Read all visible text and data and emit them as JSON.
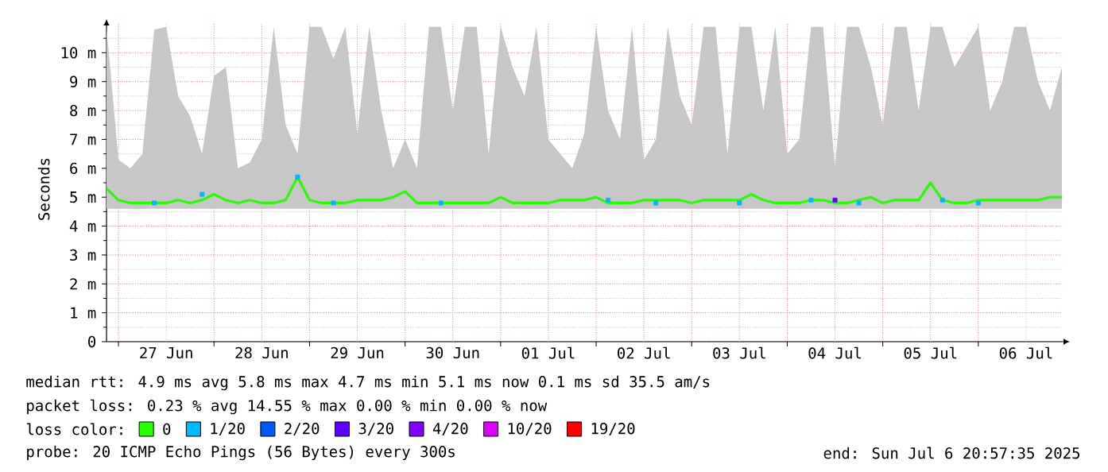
{
  "chart_data": {
    "type": "line",
    "ylabel": "Seconds",
    "legend_title": "loss color:",
    "legend": "bottom",
    "grid": true,
    "xlim": [
      "2025-06-26T21:00",
      "2025-07-06T21:00"
    ],
    "ylim": [
      0,
      11
    ],
    "xticks": [
      {
        "value": "2025-06-27T00:00",
        "label": null
      },
      {
        "value": "2025-06-28T00:00",
        "label": null
      },
      {
        "value": "2025-06-29T00:00",
        "label": null
      },
      {
        "value": "2025-06-30T00:00",
        "label": null
      },
      {
        "value": "2025-07-01T00:00",
        "label": null
      },
      {
        "value": "2025-07-02T00:00",
        "label": null
      },
      {
        "value": "2025-07-03T00:00",
        "label": null
      },
      {
        "value": "2025-07-04T00:00",
        "label": null
      },
      {
        "value": "2025-07-05T00:00",
        "label": null
      },
      {
        "value": "2025-07-06T00:00",
        "label": null
      },
      {
        "value": "2025-06-27T12:00",
        "label": "27 Jun"
      },
      {
        "value": "2025-06-28T12:00",
        "label": "28 Jun"
      },
      {
        "value": "2025-06-29T12:00",
        "label": "29 Jun"
      },
      {
        "value": "2025-06-30T12:00",
        "label": "30 Jun"
      },
      {
        "value": "2025-07-01T12:00",
        "label": "01 Jul"
      },
      {
        "value": "2025-07-02T12:00",
        "label": "02 Jul"
      },
      {
        "value": "2025-07-03T12:00",
        "label": "03 Jul"
      },
      {
        "value": "2025-07-04T12:00",
        "label": "04 Jul"
      },
      {
        "value": "2025-07-05T12:00",
        "label": "05 Jul"
      },
      {
        "value": "2025-07-06T12:00",
        "label": "06 Jul"
      }
    ],
    "yticks": [
      0,
      {
        "value": 1,
        "label": "1 m"
      },
      {
        "value": 2,
        "label": "2 m"
      },
      {
        "value": 3,
        "label": "3 m"
      },
      {
        "value": 4,
        "label": "4 m"
      },
      {
        "value": 5,
        "label": "5 m"
      },
      {
        "value": 6,
        "label": "6 m"
      },
      {
        "value": 7,
        "label": "7 m"
      },
      {
        "value": 8,
        "label": "8 m"
      },
      {
        "value": 9,
        "label": "9 m"
      },
      {
        "value": 10,
        "label": "10 m"
      },
      {
        "value": 0.5,
        "label": null
      },
      {
        "value": 1.5,
        "label": null
      },
      {
        "value": 2.5,
        "label": null
      },
      {
        "value": 3.5,
        "label": null
      },
      {
        "value": 4.5,
        "label": null
      },
      {
        "value": 5.5,
        "label": null
      },
      {
        "value": 6.5,
        "label": null
      },
      {
        "value": 7.5,
        "label": null
      },
      {
        "value": 8.5,
        "label": null
      },
      {
        "value": 9.5,
        "label": null
      },
      {
        "value": 10.5,
        "label": null
      }
    ],
    "x": [
      "2025-06-26T21:00",
      "2025-06-27T00:00",
      "2025-06-27T03:00",
      "2025-06-27T06:00",
      "2025-06-27T09:00",
      "2025-06-27T12:00",
      "2025-06-27T15:00",
      "2025-06-27T18:00",
      "2025-06-27T21:00",
      "2025-06-28T00:00",
      "2025-06-28T03:00",
      "2025-06-28T06:00",
      "2025-06-28T09:00",
      "2025-06-28T12:00",
      "2025-06-28T15:00",
      "2025-06-28T18:00",
      "2025-06-28T21:00",
      "2025-06-29T00:00",
      "2025-06-29T03:00",
      "2025-06-29T06:00",
      "2025-06-29T09:00",
      "2025-06-29T12:00",
      "2025-06-29T15:00",
      "2025-06-29T18:00",
      "2025-06-29T21:00",
      "2025-06-30T00:00",
      "2025-06-30T03:00",
      "2025-06-30T06:00",
      "2025-06-30T09:00",
      "2025-06-30T12:00",
      "2025-06-30T15:00",
      "2025-06-30T18:00",
      "2025-06-30T21:00",
      "2025-07-01T00:00",
      "2025-07-01T03:00",
      "2025-07-01T06:00",
      "2025-07-01T09:00",
      "2025-07-01T12:00",
      "2025-07-01T15:00",
      "2025-07-01T18:00",
      "2025-07-01T21:00",
      "2025-07-02T00:00",
      "2025-07-02T03:00",
      "2025-07-02T06:00",
      "2025-07-02T09:00",
      "2025-07-02T12:00",
      "2025-07-02T15:00",
      "2025-07-02T18:00",
      "2025-07-02T21:00",
      "2025-07-03T00:00",
      "2025-07-03T03:00",
      "2025-07-03T06:00",
      "2025-07-03T09:00",
      "2025-07-03T12:00",
      "2025-07-03T15:00",
      "2025-07-03T18:00",
      "2025-07-03T21:00",
      "2025-07-04T00:00",
      "2025-07-04T03:00",
      "2025-07-04T06:00",
      "2025-07-04T09:00",
      "2025-07-04T12:00",
      "2025-07-04T15:00",
      "2025-07-04T18:00",
      "2025-07-04T21:00",
      "2025-07-05T00:00",
      "2025-07-05T03:00",
      "2025-07-05T06:00",
      "2025-07-05T09:00",
      "2025-07-05T12:00",
      "2025-07-05T15:00",
      "2025-07-05T18:00",
      "2025-07-05T21:00",
      "2025-07-06T00:00",
      "2025-07-06T03:00",
      "2025-07-06T06:00",
      "2025-07-06T09:00",
      "2025-07-06T12:00",
      "2025-07-06T15:00",
      "2025-07-06T18:00",
      "2025-07-06T21:00"
    ],
    "series": [
      {
        "name": "0",
        "color": "#26ff00",
        "values": [
          5.3,
          4.9,
          4.8,
          4.8,
          4.8,
          4.8,
          4.9,
          4.8,
          4.9,
          5.1,
          4.9,
          4.8,
          4.9,
          4.8,
          4.8,
          4.9,
          5.7,
          4.9,
          4.8,
          4.8,
          4.8,
          4.9,
          4.9,
          4.9,
          5.0,
          5.2,
          4.8,
          4.8,
          4.8,
          4.8,
          4.8,
          4.8,
          4.8,
          5.0,
          4.8,
          4.8,
          4.8,
          4.8,
          4.9,
          4.9,
          4.9,
          5.0,
          4.8,
          4.8,
          4.8,
          4.9,
          4.9,
          4.9,
          4.9,
          4.8,
          4.9,
          4.9,
          4.9,
          4.9,
          5.1,
          4.9,
          4.8,
          4.8,
          4.8,
          4.9,
          4.9,
          4.8,
          4.8,
          4.9,
          5.0,
          4.8,
          4.9,
          4.9,
          4.9,
          5.5,
          4.9,
          4.8,
          4.8,
          4.9,
          4.9,
          4.9,
          4.9,
          4.9,
          4.9,
          5.0,
          5.0
        ],
        "lower": [
          4.6,
          4.6,
          4.6,
          4.6,
          4.6,
          4.6,
          4.6,
          4.6,
          4.6,
          4.6,
          4.6,
          4.6,
          4.6,
          4.6,
          4.6,
          4.6,
          4.6,
          4.6,
          4.6,
          4.6,
          4.6,
          4.6,
          4.6,
          4.6,
          4.6,
          4.6,
          4.6,
          4.6,
          4.6,
          4.6,
          4.6,
          4.6,
          4.6,
          4.6,
          4.6,
          4.6,
          4.6,
          4.6,
          4.6,
          4.6,
          4.6,
          4.6,
          4.6,
          4.6,
          4.6,
          4.6,
          4.6,
          4.6,
          4.6,
          4.6,
          4.6,
          4.6,
          4.6,
          4.6,
          4.6,
          4.6,
          4.6,
          4.6,
          4.6,
          4.6,
          4.6,
          4.6,
          4.6,
          4.6,
          4.6,
          4.6,
          4.6,
          4.6,
          4.6,
          4.6,
          4.6,
          4.6,
          4.6,
          4.6,
          4.6,
          4.6,
          4.6,
          4.6,
          4.6,
          4.6,
          4.6
        ],
        "upper": [
          10.9,
          6.3,
          6.0,
          6.5,
          10.8,
          10.9,
          8.5,
          7.8,
          6.5,
          9.2,
          9.5,
          6.0,
          6.2,
          7.0,
          10.9,
          7.5,
          6.5,
          10.9,
          10.9,
          9.8,
          10.9,
          7.2,
          10.9,
          8.0,
          6.0,
          7.0,
          6.0,
          10.9,
          10.9,
          8.0,
          10.9,
          10.9,
          6.5,
          10.9,
          9.5,
          8.5,
          10.9,
          7.0,
          6.5,
          6.0,
          7.2,
          10.9,
          8.0,
          7.0,
          10.9,
          6.3,
          7.0,
          10.9,
          8.5,
          7.5,
          10.9,
          10.9,
          6.5,
          10.9,
          10.9,
          8.0,
          10.9,
          6.5,
          7.0,
          10.9,
          10.9,
          6.0,
          10.9,
          10.9,
          9.5,
          7.5,
          10.9,
          10.9,
          8.0,
          10.9,
          10.9,
          9.5,
          10.2,
          10.9,
          8.0,
          9.0,
          10.9,
          10.9,
          9.0,
          8.0,
          9.5
        ]
      },
      {
        "name": "1/20",
        "type": "scatter",
        "color": "#00b8ff",
        "x": [
          "2025-06-27T09:00",
          "2025-06-27T21:00",
          "2025-06-28T21:00",
          "2025-06-29T06:00",
          "2025-06-30T09:00",
          "2025-07-02T03:00",
          "2025-07-02T15:00",
          "2025-07-03T12:00",
          "2025-07-04T06:00",
          "2025-07-04T18:00",
          "2025-07-05T15:00",
          "2025-07-06T00:00"
        ],
        "values": [
          4.8,
          5.1,
          5.7,
          4.8,
          4.8,
          4.9,
          4.8,
          4.8,
          4.9,
          4.8,
          4.9,
          4.8
        ]
      },
      {
        "name": "2/20",
        "type": "scatter",
        "color": "#0059ff",
        "values": [
          null,
          null,
          null,
          null,
          null,
          null,
          null,
          null,
          null,
          null,
          null,
          null,
          null,
          null,
          null,
          null,
          null,
          null,
          null,
          null,
          null,
          null,
          null,
          null,
          null,
          null,
          null,
          null,
          null,
          null,
          null,
          null,
          null,
          null,
          null,
          null,
          null,
          null,
          null,
          null,
          null,
          null,
          null,
          null,
          null,
          null,
          null,
          null,
          null,
          null,
          null,
          null,
          null,
          null,
          null,
          null,
          null,
          null,
          null,
          null,
          null,
          null,
          null,
          null,
          null,
          null,
          null,
          null,
          null,
          null,
          null,
          null,
          null,
          null,
          null,
          null,
          null,
          null,
          null,
          null,
          null
        ]
      },
      {
        "name": "3/20",
        "type": "scatter",
        "color": "#5e00ff",
        "x": [
          "2025-07-04T12:00"
        ],
        "values": [
          4.9
        ]
      },
      {
        "name": "4/20",
        "type": "scatter",
        "color": "#7e00ff",
        "values": [
          null,
          null,
          null,
          null,
          null,
          null,
          null,
          null,
          null,
          null,
          null,
          null,
          null,
          null,
          null,
          null,
          null,
          null,
          null,
          null,
          null,
          null,
          null,
          null,
          null,
          null,
          null,
          null,
          null,
          null,
          null,
          null,
          null,
          null,
          null,
          null,
          null,
          null,
          null,
          null,
          null,
          null,
          null,
          null,
          null,
          null,
          null,
          null,
          null,
          null,
          null,
          null,
          null,
          null,
          null,
          null,
          null,
          null,
          null,
          null,
          null,
          null,
          null,
          null,
          null,
          null,
          null,
          null,
          null,
          null,
          null,
          null,
          null,
          null,
          null,
          null,
          null,
          null,
          null,
          null,
          null
        ]
      },
      {
        "name": "10/20",
        "type": "scatter",
        "color": "#dd00ff",
        "values": [
          null,
          null,
          null,
          null,
          null,
          null,
          null,
          null,
          null,
          null,
          null,
          null,
          null,
          null,
          null,
          null,
          null,
          null,
          null,
          null,
          null,
          null,
          null,
          null,
          null,
          null,
          null,
          null,
          null,
          null,
          null,
          null,
          null,
          null,
          null,
          null,
          null,
          null,
          null,
          null,
          null,
          null,
          null,
          null,
          null,
          null,
          null,
          null,
          null,
          null,
          null,
          null,
          null,
          null,
          null,
          null,
          null,
          null,
          null,
          null,
          null,
          null,
          null,
          null,
          null,
          null,
          null,
          null,
          null,
          null,
          null,
          null,
          null,
          null,
          null,
          null,
          null,
          null,
          null,
          null,
          null
        ]
      },
      {
        "name": "19/20",
        "type": "scatter",
        "color": "#ff0000",
        "values": [
          null,
          null,
          null,
          null,
          null,
          null,
          null,
          null,
          null,
          null,
          null,
          null,
          null,
          null,
          null,
          null,
          null,
          null,
          null,
          null,
          null,
          null,
          null,
          null,
          null,
          null,
          null,
          null,
          null,
          null,
          null,
          null,
          null,
          null,
          null,
          null,
          null,
          null,
          null,
          null,
          null,
          null,
          null,
          null,
          null,
          null,
          null,
          null,
          null,
          null,
          null,
          null,
          null,
          null,
          null,
          null,
          null,
          null,
          null,
          null,
          null,
          null,
          null,
          null,
          null,
          null,
          null,
          null,
          null,
          null,
          null,
          null,
          null,
          null,
          null,
          null,
          null,
          null,
          null,
          null,
          null
        ]
      }
    ],
    "annotations": [
      "median rtt: 4.9 ms avg 5.8 ms max 4.7 ms min 5.1 ms now 0.1 ms sd 35.5 am/s",
      "packet loss: 0.23 % avg 14.55 % max 0.00 % min 0.00 % now",
      "probe: 20 ICMP Echo Pings (56 Bytes) every 300s",
      "end: Sun Jul 6 20:57:35 2025"
    ]
  }
}
